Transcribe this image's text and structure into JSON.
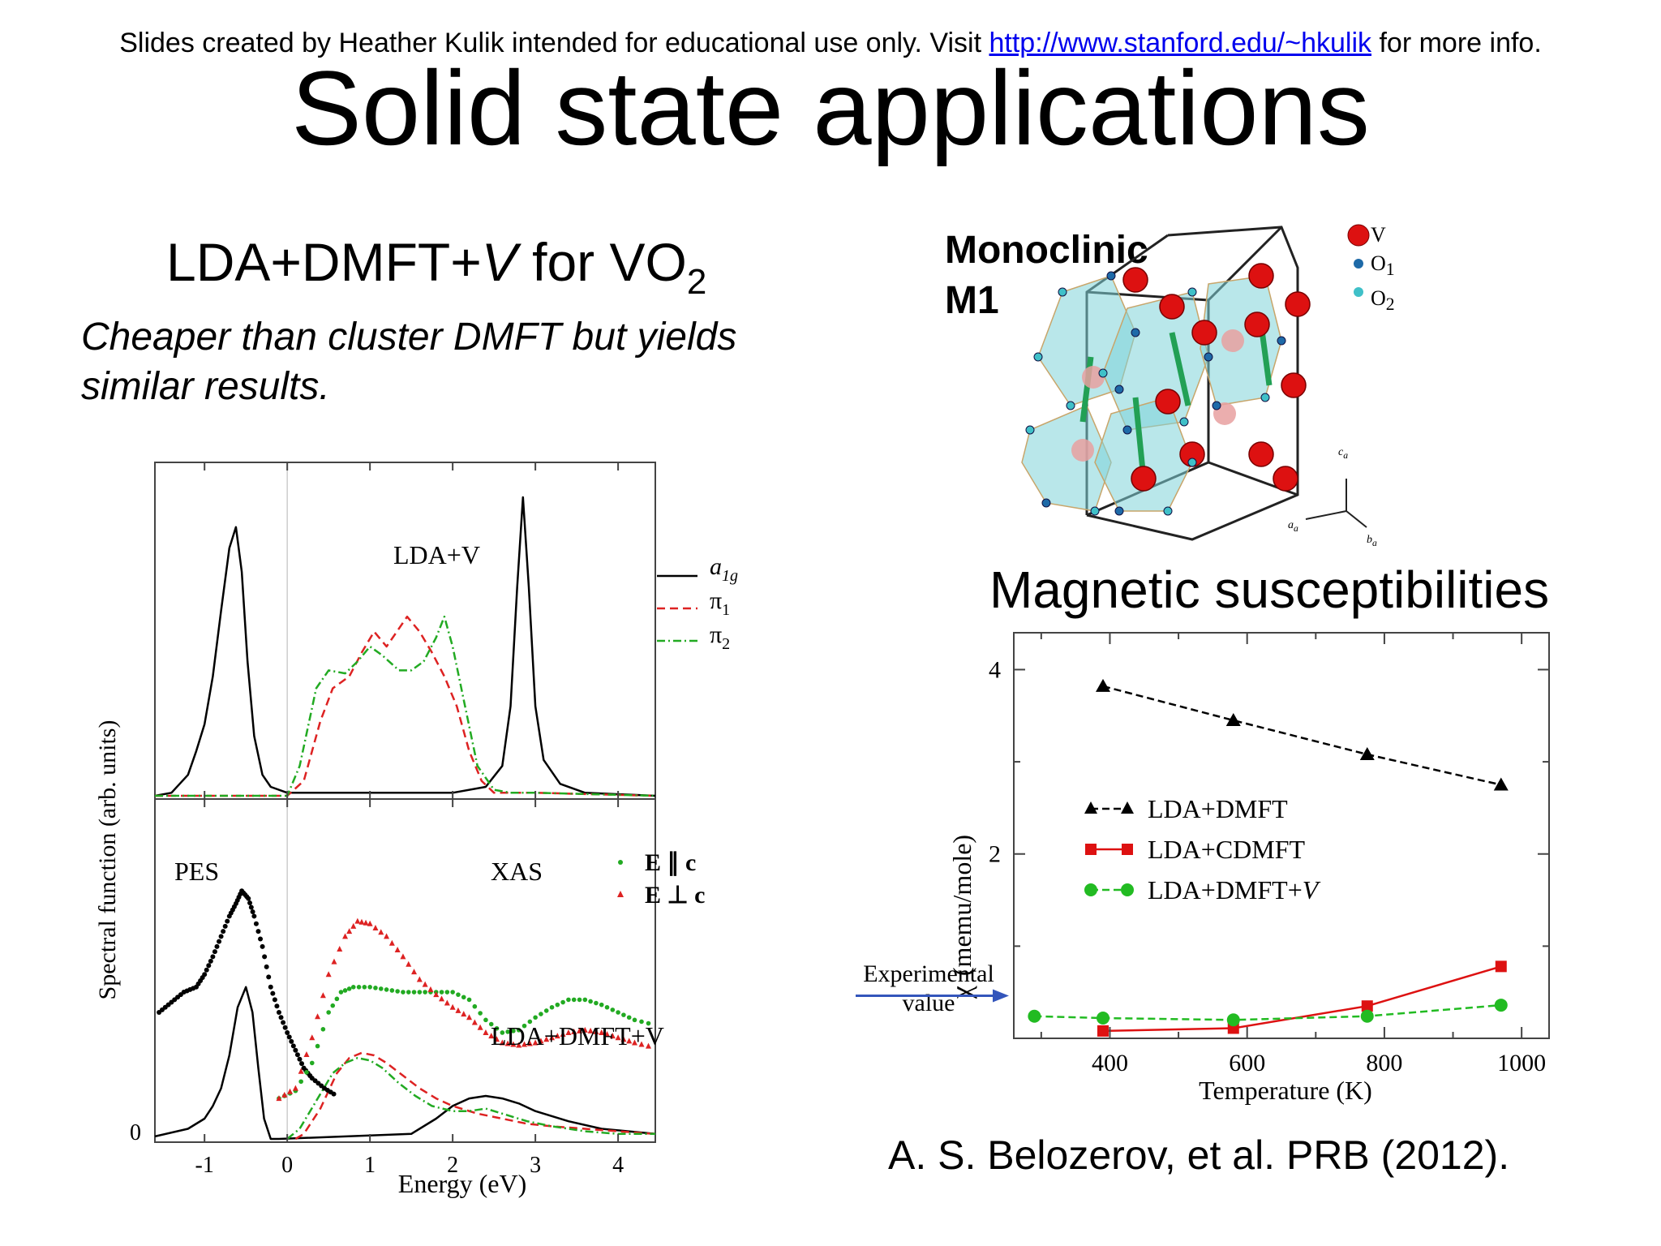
{
  "header": {
    "note_prefix": "Slides created by Heather Kulik intended for educational use only. Visit ",
    "link": "http://www.stanford.edu/~hkulik",
    "note_suffix": " for more info."
  },
  "slide_title": "Solid state applications",
  "left": {
    "heading_main": "LDA+DMFT+",
    "heading_italic": "V",
    "heading_for": " for VO",
    "heading_sub": "2",
    "note": "Cheaper than cluster DMFT but yields similar results."
  },
  "structure": {
    "label_line1": "Monoclinic",
    "label_line2": "M1",
    "legend": [
      "V",
      "O",
      "O"
    ],
    "legend_sub": [
      "",
      "1",
      "2"
    ],
    "axes": [
      "c",
      "a",
      "b"
    ],
    "axes_sub": [
      "a",
      "a",
      "a"
    ],
    "colors": {
      "V": "#dd1111",
      "O1": "#1e6aa8",
      "O2": "#3fc0c8",
      "octahedron": "#7fd3d8"
    }
  },
  "magnetic_heading": "Magnetic susceptibilities",
  "citation": "A. S. Belozerov, et al. PRB (2012).",
  "chart_data": [
    {
      "type": "line",
      "panels": [
        {
          "label": "LDA+V",
          "legend": [
            {
              "name": "a",
              "name_sub": "1g",
              "style": "solid",
              "color": "#000000"
            },
            {
              "name": "π",
              "name_sub": "1",
              "style": "dashed",
              "color": "#dd2222"
            },
            {
              "name": "π",
              "name_sub": "2",
              "style": "dash-dot",
              "color": "#22aa22"
            }
          ],
          "series": [
            {
              "name": "a1g",
              "color": "#000000",
              "style": "solid",
              "x": [
                -1.6,
                -1.4,
                -1.2,
                -1.1,
                -1.0,
                -0.9,
                -0.8,
                -0.7,
                -0.62,
                -0.55,
                -0.48,
                -0.4,
                -0.3,
                -0.2,
                0,
                1,
                2,
                2.4,
                2.6,
                2.7,
                2.78,
                2.85,
                2.92,
                3.0,
                3.1,
                3.3,
                3.6,
                4.45
              ],
              "y": [
                0,
                0.01,
                0.07,
                0.15,
                0.24,
                0.4,
                0.62,
                0.83,
                0.9,
                0.75,
                0.45,
                0.2,
                0.07,
                0.03,
                0.01,
                0.01,
                0.01,
                0.03,
                0.1,
                0.3,
                0.7,
                1.0,
                0.7,
                0.3,
                0.12,
                0.04,
                0.01,
                0
              ]
            },
            {
              "name": "π1",
              "color": "#dd2222",
              "style": "dashed",
              "x": [
                -1.6,
                0,
                0.2,
                0.4,
                0.55,
                0.75,
                0.9,
                1.05,
                1.2,
                1.3,
                1.45,
                1.6,
                1.75,
                1.9,
                2.05,
                2.2,
                2.35,
                2.5,
                2.7,
                3.0,
                4.45
              ],
              "y": [
                0,
                0,
                0.05,
                0.25,
                0.36,
                0.4,
                0.48,
                0.55,
                0.5,
                0.54,
                0.6,
                0.55,
                0.48,
                0.4,
                0.3,
                0.15,
                0.05,
                0.01,
                0.01,
                0.01,
                0
              ]
            },
            {
              "name": "π2",
              "color": "#22aa22",
              "style": "dash-dot",
              "x": [
                -1.6,
                0,
                0.15,
                0.35,
                0.5,
                0.7,
                0.85,
                1.0,
                1.15,
                1.35,
                1.5,
                1.65,
                1.8,
                1.9,
                2.0,
                2.15,
                2.3,
                2.5,
                2.7,
                3.0,
                4.45
              ],
              "y": [
                0,
                0,
                0.1,
                0.36,
                0.42,
                0.41,
                0.45,
                0.5,
                0.47,
                0.42,
                0.42,
                0.45,
                0.53,
                0.6,
                0.5,
                0.3,
                0.1,
                0.02,
                0.01,
                0.01,
                0
              ]
            }
          ]
        },
        {
          "label": "LDA+DMFT+V",
          "annotations": [
            "PES",
            "XAS"
          ],
          "legend": [
            {
              "name": "E ∥ c",
              "style": "green-dots",
              "color": "#22aa22"
            },
            {
              "name": "E ⊥ c",
              "style": "red-triangles",
              "color": "#dd2222"
            }
          ],
          "series": [
            {
              "name": "a1g",
              "color": "#000000",
              "style": "solid",
              "x": [
                -1.6,
                -1.2,
                -1.0,
                -0.9,
                -0.8,
                -0.7,
                -0.6,
                -0.5,
                -0.42,
                -0.35,
                -0.28,
                -0.2,
                -0.1,
                1.5,
                1.8,
                2.0,
                2.2,
                2.4,
                2.6,
                2.8,
                3.0,
                3.4,
                3.8,
                4.45
              ],
              "y": [
                0.01,
                0.04,
                0.08,
                0.13,
                0.2,
                0.33,
                0.52,
                0.6,
                0.5,
                0.28,
                0.08,
                0.0,
                0.0,
                0.02,
                0.08,
                0.13,
                0.16,
                0.17,
                0.16,
                0.14,
                0.11,
                0.07,
                0.04,
                0.02
              ]
            },
            {
              "name": "π1",
              "color": "#dd2222",
              "style": "dashed",
              "x": [
                0.1,
                0.2,
                0.4,
                0.6,
                0.75,
                0.9,
                1.05,
                1.2,
                1.4,
                1.6,
                1.8,
                2.0,
                2.3,
                2.6,
                2.9,
                3.2,
                3.6,
                4.0,
                4.45
              ],
              "y": [
                0,
                0.02,
                0.12,
                0.26,
                0.32,
                0.34,
                0.33,
                0.3,
                0.25,
                0.2,
                0.16,
                0.13,
                0.1,
                0.08,
                0.06,
                0.05,
                0.04,
                0.03,
                0.02
              ]
            },
            {
              "name": "π2",
              "color": "#22aa22",
              "style": "dash-dot",
              "x": [
                0,
                0.15,
                0.35,
                0.55,
                0.7,
                0.85,
                1.0,
                1.15,
                1.35,
                1.55,
                1.75,
                2.0,
                2.2,
                2.4,
                2.6,
                2.9,
                3.2,
                3.6,
                4.0,
                4.45
              ],
              "y": [
                0,
                0.04,
                0.15,
                0.26,
                0.3,
                0.32,
                0.31,
                0.28,
                0.22,
                0.17,
                0.13,
                0.11,
                0.11,
                0.12,
                0.1,
                0.07,
                0.05,
                0.03,
                0.02,
                0.02
              ]
            },
            {
              "name": "PES",
              "color": "#000000",
              "style": "dots",
              "x": [
                -1.55,
                -1.4,
                -1.25,
                -1.1,
                -1.0,
                -0.9,
                -0.8,
                -0.7,
                -0.62,
                -0.55,
                -0.47,
                -0.4,
                -0.3,
                -0.2,
                -0.1,
                0,
                0.1,
                0.2,
                0.3,
                0.45,
                0.6
              ],
              "y": [
                0.5,
                0.54,
                0.58,
                0.6,
                0.65,
                0.72,
                0.8,
                0.88,
                0.93,
                0.98,
                0.95,
                0.88,
                0.76,
                0.6,
                0.5,
                0.42,
                0.35,
                0.28,
                0.24,
                0.2,
                0.17
              ]
            },
            {
              "name": "E ∥ c",
              "color": "#22aa22",
              "style": "green-dots",
              "x": [
                -0.1,
                0.1,
                0.3,
                0.5,
                0.65,
                0.8,
                1.0,
                1.2,
                1.4,
                1.6,
                1.8,
                2.0,
                2.2,
                2.4,
                2.6,
                2.8,
                3.0,
                3.2,
                3.4,
                3.6,
                3.8,
                4.0,
                4.2,
                4.45
              ],
              "y": [
                0.16,
                0.19,
                0.3,
                0.5,
                0.58,
                0.6,
                0.6,
                0.59,
                0.58,
                0.58,
                0.58,
                0.58,
                0.55,
                0.47,
                0.42,
                0.43,
                0.48,
                0.52,
                0.55,
                0.55,
                0.53,
                0.5,
                0.47,
                0.45
              ]
            },
            {
              "name": "E ⊥ c",
              "color": "#dd2222",
              "style": "red-triangles",
              "x": [
                -0.1,
                0.1,
                0.3,
                0.5,
                0.7,
                0.85,
                1.0,
                1.2,
                1.4,
                1.6,
                1.8,
                2.0,
                2.2,
                2.4,
                2.6,
                2.8,
                3.0,
                3.2,
                3.4,
                3.6,
                3.8,
                4.0,
                4.2,
                4.45
              ],
              "y": [
                0.16,
                0.2,
                0.4,
                0.65,
                0.8,
                0.86,
                0.85,
                0.8,
                0.72,
                0.63,
                0.57,
                0.52,
                0.48,
                0.42,
                0.38,
                0.37,
                0.38,
                0.4,
                0.42,
                0.43,
                0.42,
                0.4,
                0.38,
                0.36
              ]
            }
          ]
        }
      ],
      "xlabel": "Energy (eV)",
      "ylabel": "Spectral function (arb. units)",
      "xlim": [
        -1.6,
        4.45
      ],
      "xticks": [
        -1,
        0,
        1,
        2,
        3,
        4
      ],
      "y_zero_label": "0"
    },
    {
      "type": "line",
      "xlabel": "Temperature (K)",
      "ylabel_symbol": "χ",
      "ylabel_units": "(memu/mole)",
      "xlim": [
        260,
        1040
      ],
      "ylim": [
        0,
        4.4
      ],
      "xticks": [
        400,
        600,
        800,
        1000
      ],
      "yticks": [
        2,
        4
      ],
      "series": [
        {
          "name": "LDA+DMFT",
          "color": "#000000",
          "style": "dashed",
          "marker": "triangle",
          "x": [
            390,
            580,
            775,
            970
          ],
          "y": [
            3.82,
            3.45,
            3.08,
            2.75
          ]
        },
        {
          "name": "LDA+CDMFT",
          "color": "#dd1111",
          "style": "solid",
          "marker": "square",
          "x": [
            390,
            580,
            775,
            970
          ],
          "y": [
            0.08,
            0.11,
            0.35,
            0.78
          ]
        },
        {
          "name": "LDA+DMFT+V",
          "name_main": "LDA+DMFT+",
          "name_italic": "V",
          "color": "#22bb22",
          "style": "dashed",
          "marker": "circle",
          "x": [
            290,
            390,
            580,
            775,
            970
          ],
          "y": [
            0.24,
            0.22,
            0.2,
            0.24,
            0.36
          ]
        }
      ],
      "annotation": {
        "line1": "Experimental",
        "line2": "value",
        "y": 0.55,
        "arrow_color": "#3355bb"
      }
    }
  ]
}
